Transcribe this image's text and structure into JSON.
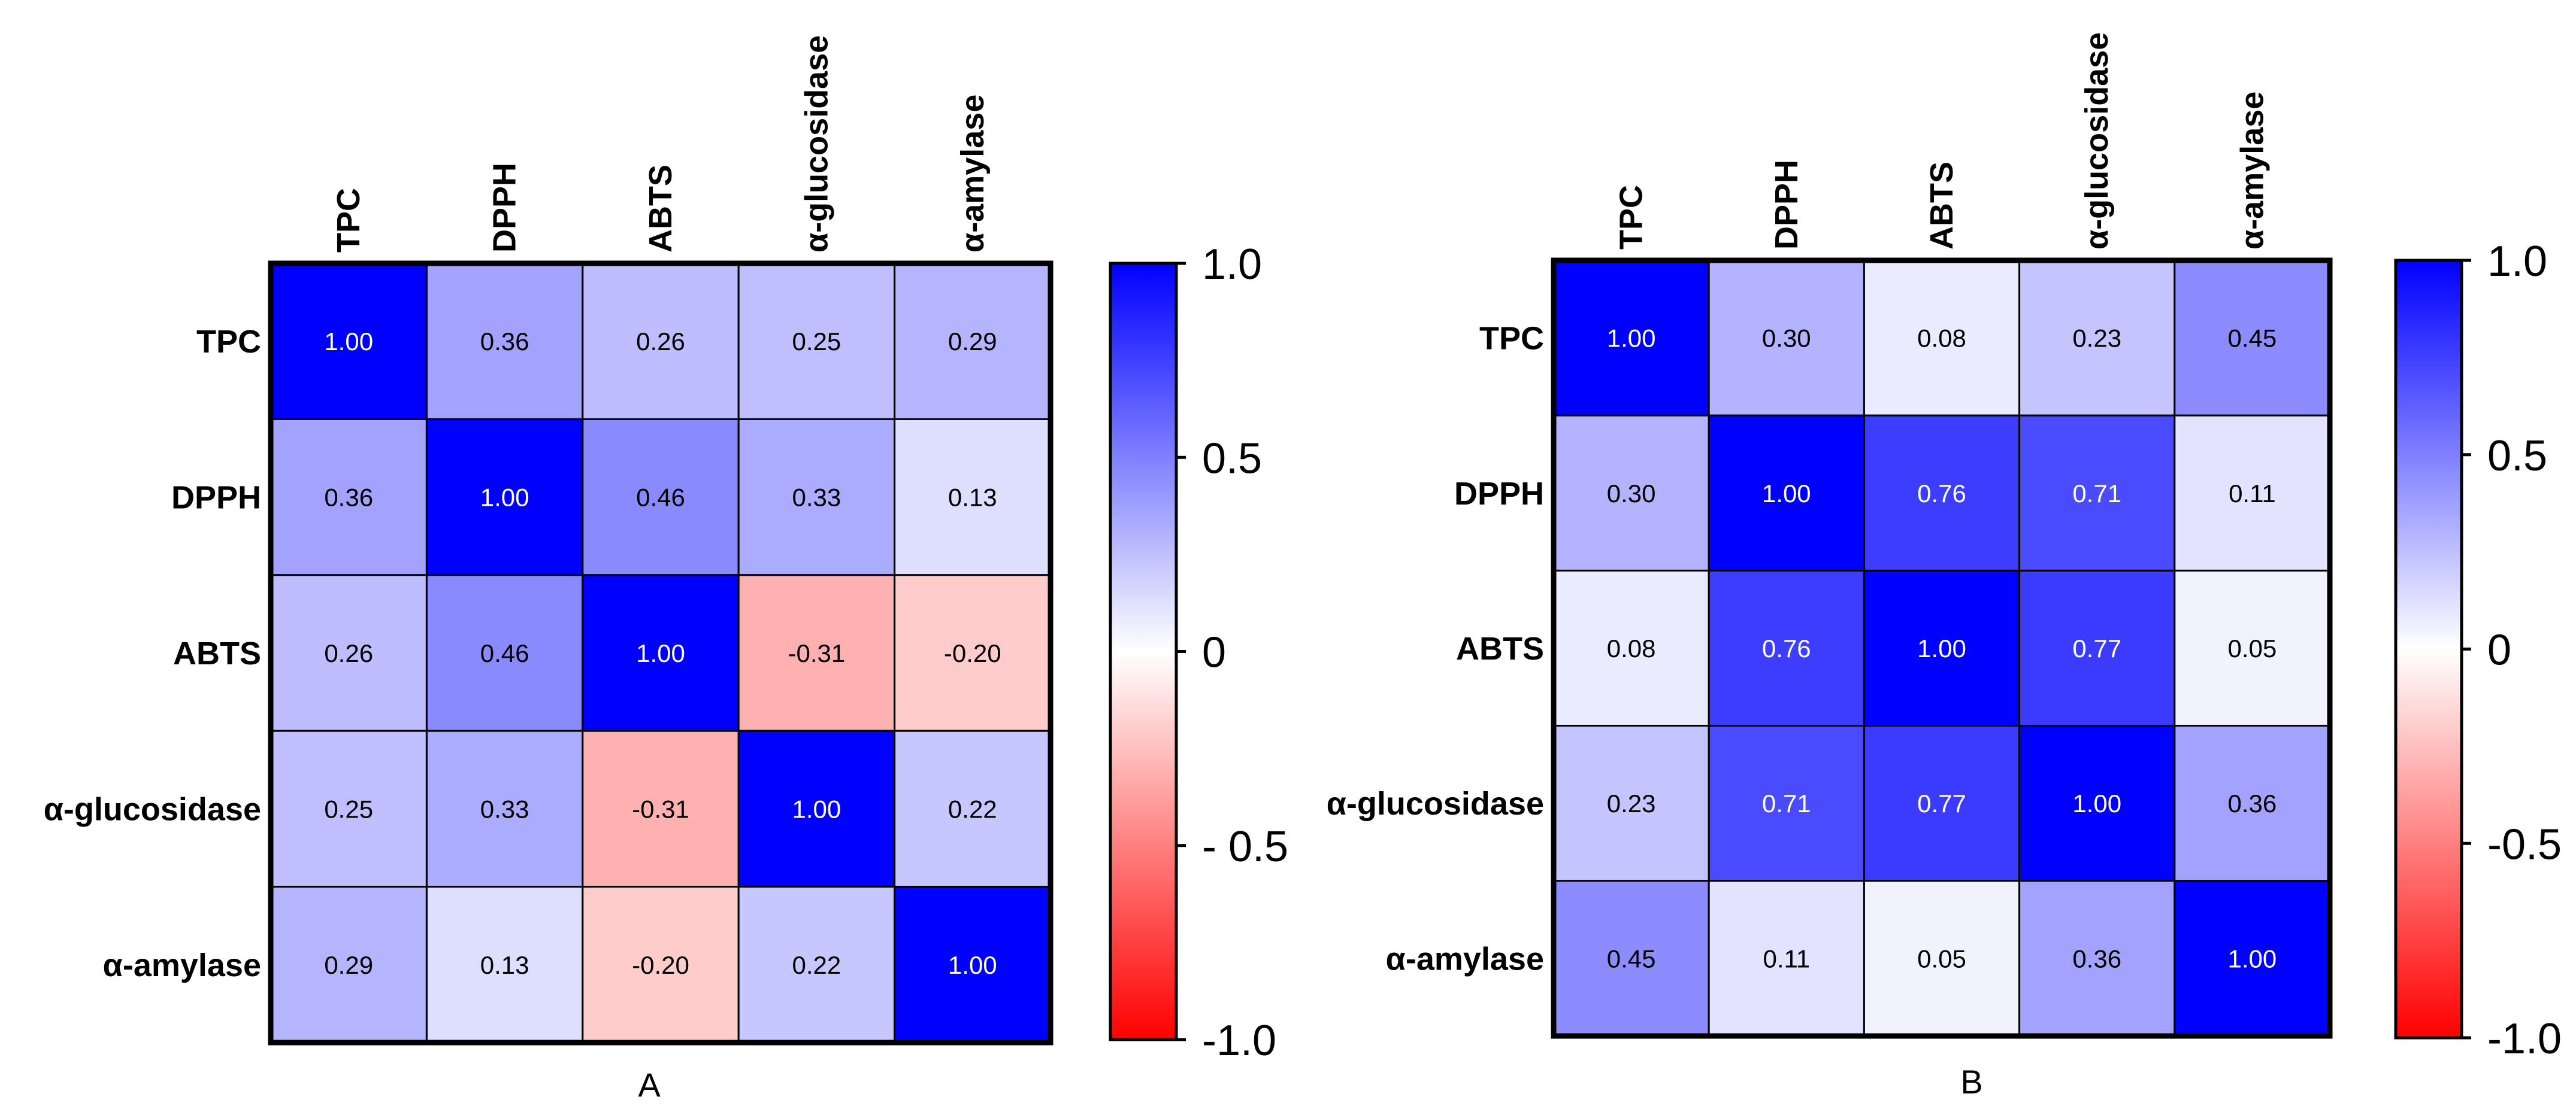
{
  "chart_data": [
    {
      "type": "heatmap",
      "panel_label": "A",
      "variables": [
        "TPC",
        "DPPH",
        "ABTS",
        "α-glucosidase",
        "α-amylase"
      ],
      "values": [
        [
          1.0,
          0.36,
          0.26,
          0.25,
          0.29
        ],
        [
          0.36,
          1.0,
          0.46,
          0.33,
          0.13
        ],
        [
          0.26,
          0.46,
          1.0,
          -0.31,
          -0.2
        ],
        [
          0.25,
          0.33,
          -0.31,
          1.0,
          0.22
        ],
        [
          0.29,
          0.13,
          -0.2,
          0.22,
          1.0
        ]
      ],
      "labels": [
        [
          "1.00",
          "0.36",
          "0.26",
          "0.25",
          "0.29"
        ],
        [
          "0.36",
          "1.00",
          "0.46",
          "0.33",
          "0.13"
        ],
        [
          "0.26",
          "0.46",
          "1.00",
          "-0.31",
          "-0.20"
        ],
        [
          "0.25",
          "0.33",
          "-0.31",
          "1.00",
          "0.22"
        ],
        [
          "0.29",
          "0.13",
          "-0.20",
          "0.22",
          "1.00"
        ]
      ],
      "colorbar": {
        "range": [
          -1.0,
          1.0
        ],
        "ticks": [
          1.0,
          0.5,
          0,
          -0.5,
          -1.0
        ],
        "tick_labels": [
          "1.0",
          "0.5",
          "0",
          "- 0.5",
          "-1.0"
        ],
        "colors": {
          "max": "#0000ff",
          "mid": "#ffffff",
          "min": "#ff0000"
        }
      }
    },
    {
      "type": "heatmap",
      "panel_label": "B",
      "variables": [
        "TPC",
        "DPPH",
        "ABTS",
        "α-glucosidase",
        "α-amylase"
      ],
      "values": [
        [
          1.0,
          0.3,
          0.08,
          0.23,
          0.45
        ],
        [
          0.3,
          1.0,
          0.76,
          0.71,
          0.11
        ],
        [
          0.08,
          0.76,
          1.0,
          0.77,
          0.05
        ],
        [
          0.23,
          0.71,
          0.77,
          1.0,
          0.36
        ],
        [
          0.45,
          0.11,
          0.05,
          0.36,
          1.0
        ]
      ],
      "labels": [
        [
          "1.00",
          "0.30",
          "0.08",
          "0.23",
          "0.45"
        ],
        [
          "0.30",
          "1.00",
          "0.76",
          "0.71",
          "0.11"
        ],
        [
          "0.08",
          "0.76",
          "1.00",
          "0.77",
          "0.05"
        ],
        [
          "0.23",
          "0.71",
          "0.77",
          "1.00",
          "0.36"
        ],
        [
          "0.45",
          "0.11",
          "0.05",
          "0.36",
          "1.00"
        ]
      ],
      "colorbar": {
        "range": [
          -1.0,
          1.0
        ],
        "ticks": [
          1.0,
          0.5,
          0,
          -0.5,
          -1.0
        ],
        "tick_labels": [
          "1.0",
          "0.5",
          "0",
          "-0.5",
          "-1.0"
        ],
        "colors": {
          "max": "#0000ff",
          "mid": "#ffffff",
          "min": "#ff0000"
        }
      }
    }
  ]
}
